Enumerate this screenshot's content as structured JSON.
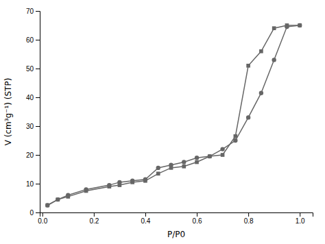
{
  "chart_data": {
    "type": "line",
    "xlabel": "P/P0",
    "ylabel": "V (cm³g⁻¹) (STP)",
    "xlim": [
      -0.01,
      1.05
    ],
    "ylim": [
      0,
      70
    ],
    "xticks": [
      {
        "value": 0.0,
        "label": "0.0"
      },
      0.2,
      0.4,
      0.6,
      0.8,
      {
        "value": 1.0,
        "label": "1.0"
      }
    ],
    "yticks": [
      0,
      10,
      20,
      30,
      40,
      50,
      60,
      70
    ],
    "series": [
      {
        "color": "#666666",
        "marker": "square",
        "x": [
          0.02,
          0.06,
          0.1,
          0.17,
          0.26,
          0.3,
          0.35,
          0.4,
          0.45,
          0.5,
          0.55,
          0.6,
          0.65,
          0.7,
          0.75,
          0.8,
          0.85,
          0.9,
          0.95,
          1.0
        ],
        "values": [
          2.5,
          4.5,
          5.5,
          7.5,
          9.0,
          9.5,
          10.5,
          11.0,
          13.5,
          15.5,
          16.0,
          17.5,
          19.5,
          20.0,
          26.5,
          51.0,
          56.0,
          64.0,
          65.0,
          65.0
        ]
      },
      {
        "color": "#666666",
        "marker": "circle",
        "x": [
          1.0,
          0.95,
          0.9,
          0.85,
          0.8,
          0.75,
          0.7,
          0.65,
          0.6,
          0.55,
          0.5,
          0.45,
          0.4,
          0.35,
          0.3,
          0.26,
          0.17,
          0.1,
          0.06,
          0.02
        ],
        "values": [
          65.0,
          64.5,
          53.0,
          41.5,
          33.0,
          25.0,
          22.0,
          19.5,
          19.0,
          17.5,
          16.5,
          15.5,
          11.5,
          11.0,
          10.5,
          9.5,
          8.0,
          6.0,
          4.5,
          2.5
        ]
      }
    ]
  }
}
